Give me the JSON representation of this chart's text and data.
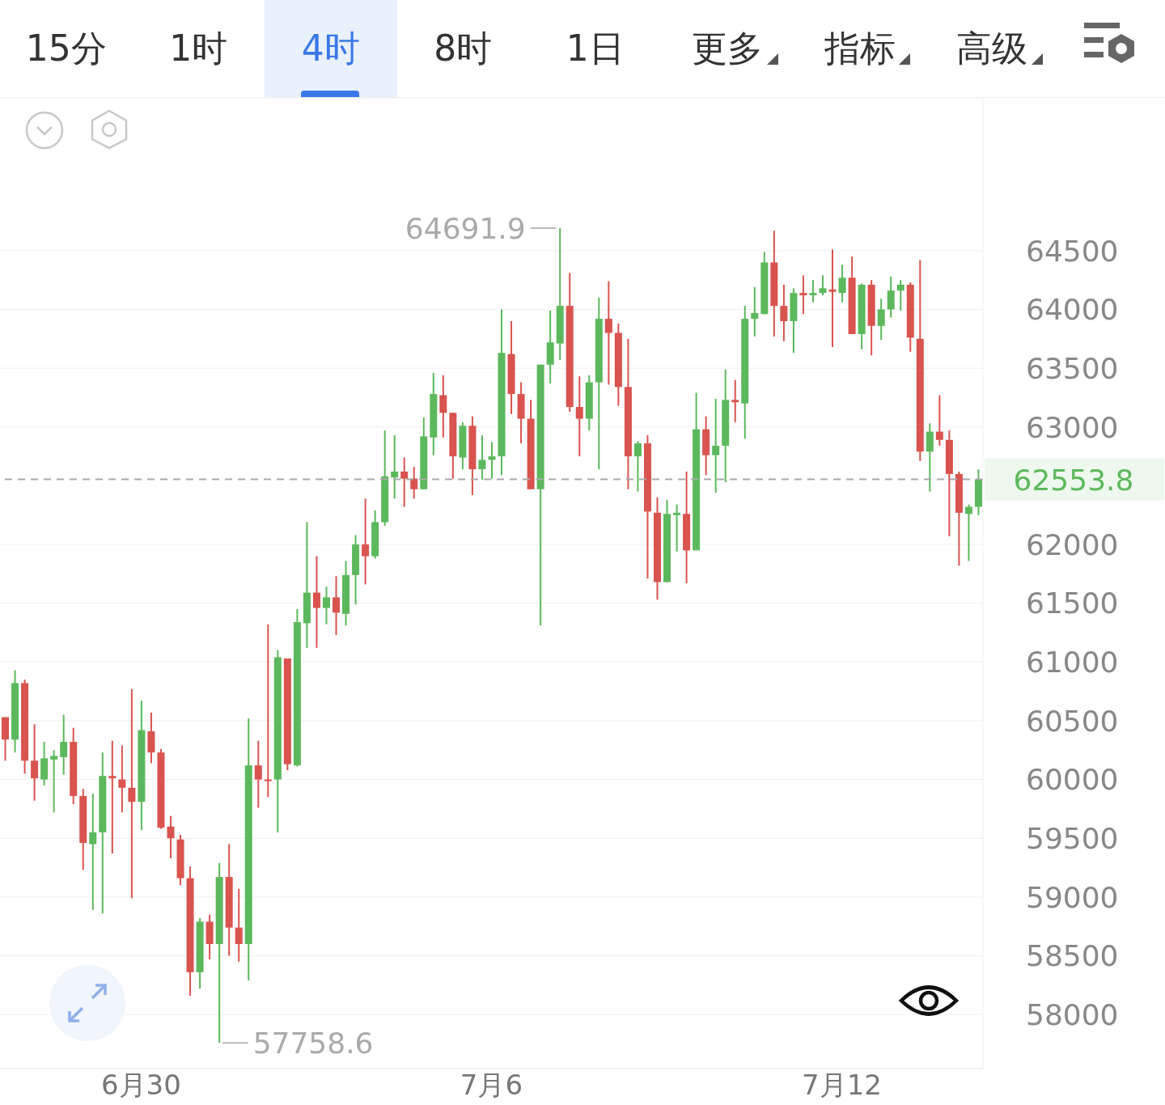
{
  "chart_data": {
    "type": "candlestick",
    "categories": [
      null,
      null,
      null,
      null,
      null,
      null,
      null,
      null,
      null,
      null,
      null,
      null,
      null,
      null,
      "6月30",
      null,
      null,
      null,
      null,
      null,
      null,
      null,
      null,
      null,
      null,
      null,
      null,
      null,
      null,
      null,
      null,
      null,
      null,
      null,
      null,
      null,
      null,
      null,
      null,
      null,
      null,
      null,
      null,
      null,
      null,
      null,
      null,
      null,
      null,
      null,
      "7月6",
      null,
      null,
      null,
      null,
      null,
      null,
      null,
      null,
      null,
      null,
      null,
      null,
      null,
      null,
      null,
      null,
      null,
      null,
      null,
      null,
      null,
      null,
      null,
      null,
      null,
      null,
      null,
      null,
      null,
      null,
      null,
      null,
      null,
      null,
      null,
      "7月12",
      null,
      null,
      null,
      null,
      null,
      null,
      null,
      null,
      null,
      null,
      null,
      null,
      null,
      null
    ],
    "ohlc": [
      [
        60530,
        60530,
        60160,
        60340
      ],
      [
        60340,
        60930,
        60230,
        60820
      ],
      [
        60820,
        60850,
        60050,
        60160
      ],
      [
        60160,
        60470,
        59820,
        60010
      ],
      [
        60000,
        60320,
        59950,
        60180
      ],
      [
        60170,
        60250,
        59720,
        60200
      ],
      [
        60190,
        60550,
        60040,
        60320
      ],
      [
        60320,
        60440,
        59790,
        59860
      ],
      [
        59860,
        59920,
        59230,
        59460
      ],
      [
        59450,
        59880,
        58890,
        59550
      ],
      [
        59550,
        60230,
        58860,
        60030
      ],
      [
        60030,
        60330,
        59370,
        60010
      ],
      [
        60000,
        60290,
        59720,
        59930
      ],
      [
        59930,
        60770,
        58990,
        59810
      ],
      [
        59810,
        60670,
        59570,
        60420
      ],
      [
        60410,
        60570,
        60140,
        60230
      ],
      [
        60230,
        60260,
        59580,
        59590
      ],
      [
        59600,
        59690,
        59330,
        59500
      ],
      [
        59490,
        59530,
        59100,
        59160
      ],
      [
        59160,
        59260,
        58160,
        58360
      ],
      [
        58360,
        58820,
        58220,
        58790
      ],
      [
        58790,
        58850,
        58470,
        58600
      ],
      [
        58600,
        59290,
        57758.6,
        59170
      ],
      [
        59170,
        59450,
        58500,
        58740
      ],
      [
        58740,
        59070,
        58450,
        58600
      ],
      [
        58600,
        60520,
        58290,
        60120
      ],
      [
        60120,
        60330,
        59760,
        60000
      ],
      [
        60000,
        61320,
        59850,
        60000
      ],
      [
        60000,
        61100,
        59550,
        61040
      ],
      [
        61030,
        61030,
        60080,
        60130
      ],
      [
        60120,
        61450,
        60110,
        61340
      ],
      [
        61330,
        62190,
        61120,
        61590
      ],
      [
        61590,
        61900,
        61120,
        61460
      ],
      [
        61460,
        61640,
        61320,
        61550
      ],
      [
        61550,
        61730,
        61230,
        61420
      ],
      [
        61410,
        61860,
        61310,
        61740
      ],
      [
        61740,
        62080,
        61490,
        62000
      ],
      [
        62000,
        62390,
        61660,
        61900
      ],
      [
        61900,
        62290,
        61880,
        62190
      ],
      [
        62190,
        62970,
        62160,
        62580
      ],
      [
        62570,
        62930,
        62390,
        62620
      ],
      [
        62620,
        62740,
        62320,
        62560
      ],
      [
        62560,
        62660,
        62390,
        62470
      ],
      [
        62470,
        63080,
        62470,
        62920
      ],
      [
        62910,
        63460,
        62760,
        63280
      ],
      [
        63270,
        63440,
        62910,
        63120
      ],
      [
        63120,
        63120,
        62560,
        62750
      ],
      [
        62740,
        63040,
        62640,
        63010
      ],
      [
        63010,
        63090,
        62420,
        62640
      ],
      [
        62640,
        62930,
        62550,
        62720
      ],
      [
        62720,
        62870,
        62560,
        62750
      ],
      [
        62750,
        64000,
        62590,
        63630
      ],
      [
        63620,
        63900,
        63110,
        63280
      ],
      [
        63280,
        63380,
        62860,
        63070
      ],
      [
        63070,
        63230,
        62470,
        62470
      ],
      [
        62470,
        63530,
        61310,
        63530
      ],
      [
        63530,
        63990,
        63370,
        63720
      ],
      [
        63710,
        64691.9,
        63570,
        64030
      ],
      [
        64030,
        64310,
        63130,
        63170
      ],
      [
        63170,
        63430,
        62750,
        63070
      ],
      [
        63070,
        63440,
        62970,
        63380
      ],
      [
        63380,
        64100,
        62640,
        63920
      ],
      [
        63920,
        64240,
        63360,
        63800
      ],
      [
        63800,
        63880,
        63180,
        63340
      ],
      [
        63340,
        63750,
        62470,
        62750
      ],
      [
        62750,
        62880,
        62450,
        62860
      ],
      [
        62860,
        62930,
        61710,
        62280
      ],
      [
        62270,
        62400,
        61530,
        61680
      ],
      [
        61680,
        62380,
        61680,
        62260
      ],
      [
        62250,
        62340,
        61940,
        62270
      ],
      [
        62260,
        62620,
        61670,
        61950
      ],
      [
        61950,
        63290,
        61950,
        62980
      ],
      [
        62980,
        63090,
        62590,
        62760
      ],
      [
        62760,
        63240,
        62440,
        62840
      ],
      [
        62840,
        63490,
        62530,
        63230
      ],
      [
        63230,
        63400,
        63040,
        63210
      ],
      [
        63200,
        64030,
        62900,
        63920
      ],
      [
        63920,
        64190,
        63770,
        63970
      ],
      [
        63960,
        64490,
        63960,
        64400
      ],
      [
        64400,
        64670,
        63770,
        64030
      ],
      [
        64030,
        64210,
        63730,
        63900
      ],
      [
        63900,
        64180,
        63630,
        64140
      ],
      [
        64140,
        64290,
        63960,
        64120
      ],
      [
        64120,
        64250,
        64060,
        64140
      ],
      [
        64140,
        64290,
        64120,
        64180
      ],
      [
        64170,
        64510,
        63680,
        64150
      ],
      [
        64140,
        64380,
        64060,
        64270
      ],
      [
        64270,
        64450,
        63790,
        63790
      ],
      [
        63790,
        64220,
        63660,
        64210
      ],
      [
        64210,
        64250,
        63610,
        63860
      ],
      [
        63860,
        64090,
        63740,
        64000
      ],
      [
        64000,
        64280,
        63930,
        64160
      ],
      [
        64160,
        64250,
        63990,
        64210
      ],
      [
        64210,
        64230,
        63640,
        63760
      ],
      [
        63750,
        64420,
        62710,
        62790
      ],
      [
        62790,
        63030,
        62450,
        62960
      ],
      [
        62960,
        63270,
        62840,
        62890
      ],
      [
        62890,
        62970,
        62070,
        62600
      ],
      [
        62600,
        62620,
        61820,
        62270
      ],
      [
        62260,
        62340,
        61860,
        62320
      ],
      [
        62320,
        62640,
        62250,
        62553.8
      ]
    ],
    "colors": [
      "#d9534f",
      "#5cb85c",
      "#d9534f",
      "#d9534f",
      "#5cb85c",
      "#5cb85c",
      "#5cb85c",
      "#d9534f",
      "#d9534f",
      "#5cb85c",
      "#5cb85c",
      "#d9534f",
      "#d9534f",
      "#d9534f",
      "#5cb85c",
      "#d9534f",
      "#d9534f",
      "#d9534f",
      "#d9534f",
      "#d9534f",
      "#5cb85c",
      "#d9534f",
      "#5cb85c",
      "#d9534f",
      "#d9534f",
      "#5cb85c",
      "#d9534f",
      "#d9534f",
      "#5cb85c",
      "#d9534f",
      "#5cb85c",
      "#5cb85c",
      "#d9534f",
      "#5cb85c",
      "#d9534f",
      "#5cb85c",
      "#5cb85c",
      "#d9534f",
      "#5cb85c",
      "#5cb85c",
      "#5cb85c",
      "#d9534f",
      "#d9534f",
      "#5cb85c",
      "#5cb85c",
      "#d9534f",
      "#d9534f",
      "#5cb85c",
      "#d9534f",
      "#5cb85c",
      "#5cb85c",
      "#5cb85c",
      "#d9534f",
      "#d9534f",
      "#d9534f",
      "#5cb85c",
      "#5cb85c",
      "#5cb85c",
      "#d9534f",
      "#d9534f",
      "#5cb85c",
      "#5cb85c",
      "#d9534f",
      "#d9534f",
      "#d9534f",
      "#5cb85c",
      "#d9534f",
      "#d9534f",
      "#5cb85c",
      "#5cb85c",
      "#d9534f",
      "#5cb85c",
      "#d9534f",
      "#5cb85c",
      "#5cb85c",
      "#d9534f",
      "#5cb85c",
      "#5cb85c",
      "#5cb85c",
      "#d9534f",
      "#d9534f",
      "#5cb85c",
      "#d9534f",
      "#5cb85c",
      "#5cb85c",
      "#d9534f",
      "#5cb85c",
      "#d9534f",
      "#5cb85c",
      "#d9534f",
      "#5cb85c",
      "#5cb85c",
      "#5cb85c",
      "#d9534f",
      "#d9534f",
      "#5cb85c",
      "#d9534f",
      "#d9534f",
      "#d9534f",
      "#5cb85c",
      "#5cb85c"
    ],
    "ylim": [
      57540,
      65800
    ],
    "yticks": [
      58000,
      58500,
      59000,
      59500,
      60000,
      60500,
      61000,
      61500,
      62000,
      63000,
      63500,
      64000,
      64500
    ],
    "grid": "y",
    "ref_lines": [
      {
        "axis": "y",
        "value": 62553.8,
        "label": "62553.8",
        "color": "#aaaaaa",
        "line_style": "dashed"
      }
    ],
    "annotations": [
      "64691.9",
      "57758.6",
      "15分",
      "1时",
      "4时",
      "8时",
      "1日",
      "更多",
      "指标",
      "高级"
    ]
  }
}
